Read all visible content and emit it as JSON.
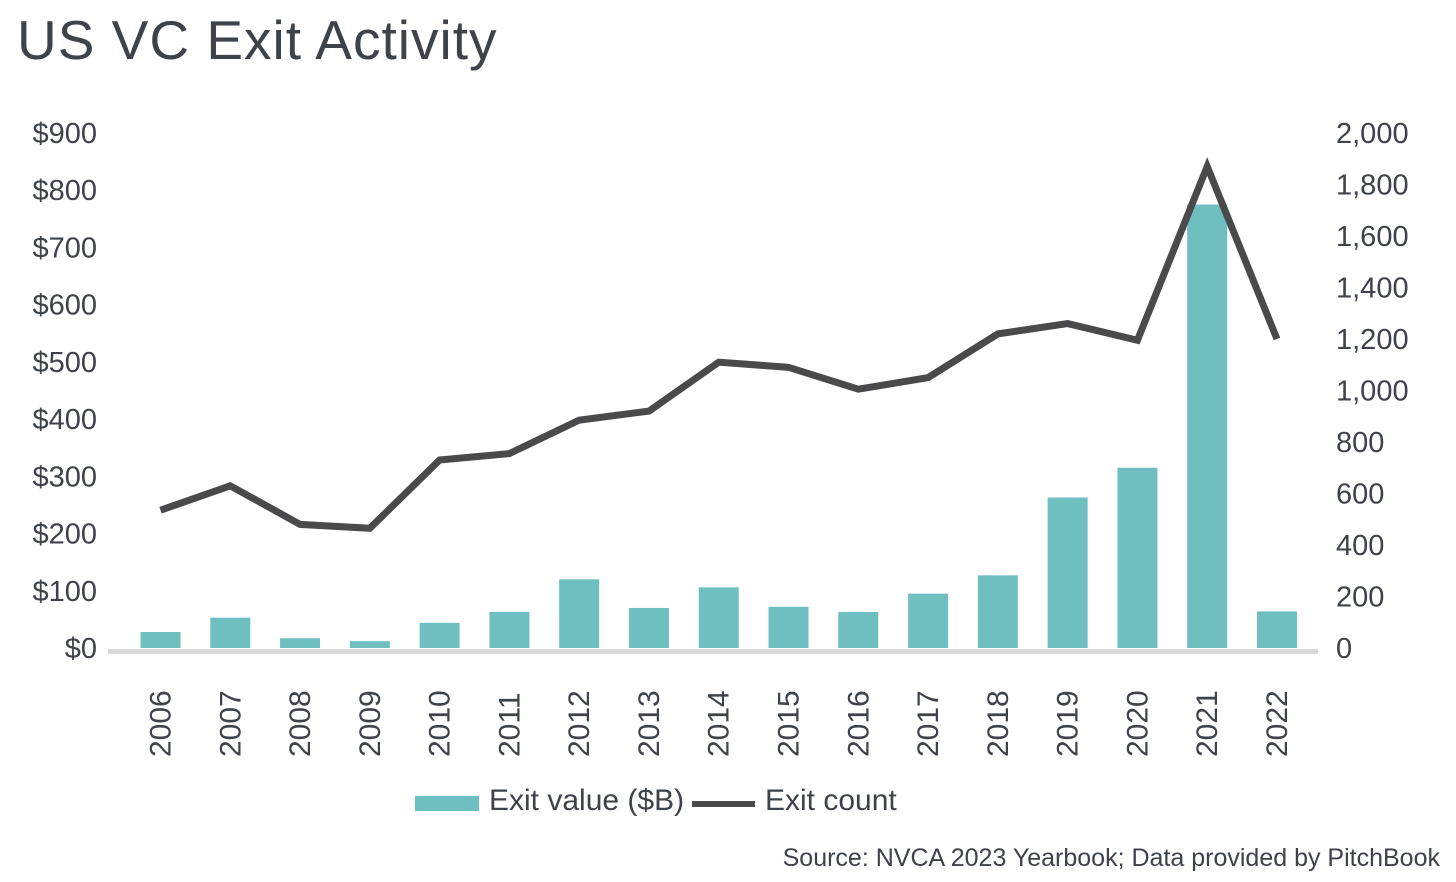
{
  "title": "US VC Exit Activity",
  "source": "Source: NVCA 2023 Yearbook; Data provided by PitchBook",
  "colors": {
    "bar": "#6FBFC1",
    "line": "#4A494C",
    "text": "#3E4249",
    "axis_line": "#D9D9D9",
    "background": "#FFFFFF"
  },
  "legend": {
    "items": [
      {
        "label": "Exit value ($B)",
        "series": "bar"
      },
      {
        "label": "Exit count",
        "series": "line"
      }
    ]
  },
  "chart_data": {
    "type": "bar+line",
    "title": "US VC Exit Activity",
    "categories": [
      "2006",
      "2007",
      "2008",
      "2009",
      "2010",
      "2011",
      "2012",
      "2013",
      "2014",
      "2015",
      "2016",
      "2017",
      "2018",
      "2019",
      "2020",
      "2021",
      "2022"
    ],
    "series": [
      {
        "name": "Exit value ($B)",
        "type": "bar",
        "axis": "left",
        "values": [
          28,
          53,
          17,
          12,
          44,
          63,
          120,
          70,
          106,
          72,
          63,
          95,
          127,
          263,
          315,
          775,
          64
        ]
      },
      {
        "name": "Exit count",
        "type": "line",
        "axis": "right",
        "values": [
          535,
          630,
          480,
          465,
          730,
          755,
          885,
          920,
          1110,
          1090,
          1005,
          1050,
          1220,
          1260,
          1195,
          1870,
          1200
        ]
      }
    ],
    "left_axis": {
      "label": "Exit value ($B)",
      "min": 0,
      "max": 900,
      "step": 100,
      "tick_prefix": "$"
    },
    "right_axis": {
      "label": "Exit count",
      "min": 0,
      "max": 2000,
      "step": 200,
      "comma_thousands": true
    },
    "grid": false,
    "legend_position": "bottom",
    "x_tick_rotation": -90
  }
}
